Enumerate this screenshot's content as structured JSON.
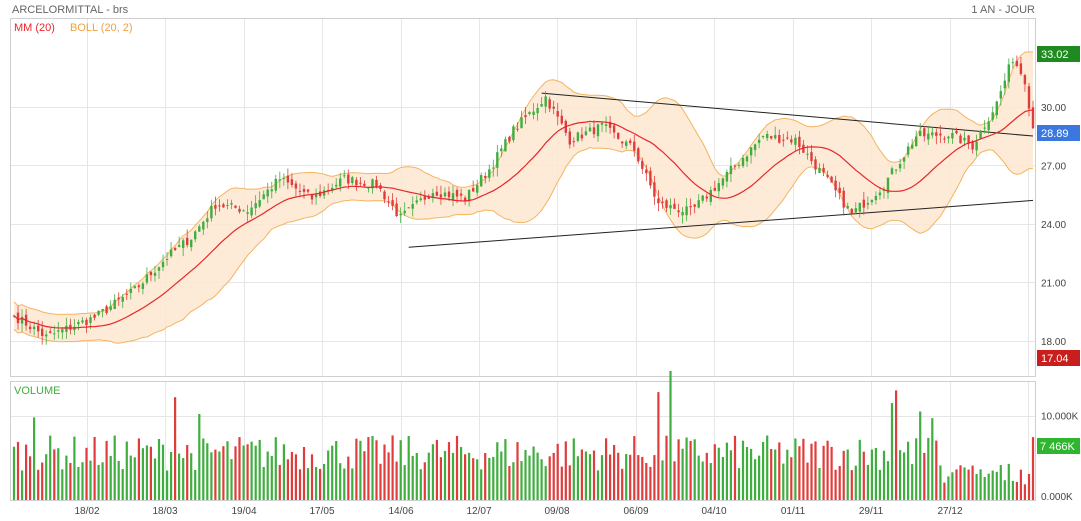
{
  "header": {
    "title": "ARCELORMITTAL - brs",
    "period": "1 AN - JOUR",
    "legend_mm": "MM (20)",
    "legend_boll": "BOLL (20, 2)",
    "volume_title": "VOLUME"
  },
  "colors": {
    "up": "#3fae3f",
    "down": "#e03c3c",
    "mm": "#e8262b",
    "boll_line": "#f5b35f",
    "boll_fill": "#fde8d1",
    "grid": "#e6e6e6",
    "badge_high": "#1f8a1f",
    "badge_last": "#3a78e0",
    "badge_low": "#c81e1e",
    "badge_vol": "#2fb52f"
  },
  "chart_data": {
    "type": "candlestick",
    "x_ticks": [
      "18/02",
      "18/03",
      "19/04",
      "17/05",
      "14/06",
      "12/07",
      "09/08",
      "06/09",
      "04/10",
      "01/11",
      "29/11",
      "27/12"
    ],
    "price_axis": {
      "ylim": [
        16.2,
        34.5
      ],
      "ticks": [
        "30.00",
        "27.00",
        "24.00",
        "21.00",
        "18.00"
      ]
    },
    "volume_axis": {
      "ylim": [
        0,
        14000
      ],
      "ticks": [
        "10.000K",
        "0.000K"
      ]
    },
    "badges": {
      "high": "33.02",
      "last": "28.89",
      "low": "17.04",
      "volume": "7 466K"
    },
    "anchors": [
      [
        0,
        19.3
      ],
      [
        8,
        18.2
      ],
      [
        20,
        19.2
      ],
      [
        30,
        20.6
      ],
      [
        38,
        22.3
      ],
      [
        44,
        23.3
      ],
      [
        50,
        25.0
      ],
      [
        58,
        24.7
      ],
      [
        66,
        26.3
      ],
      [
        74,
        25.3
      ],
      [
        82,
        26.3
      ],
      [
        90,
        26.0
      ],
      [
        96,
        24.3
      ],
      [
        104,
        25.7
      ],
      [
        112,
        25.3
      ],
      [
        118,
        26.8
      ],
      [
        124,
        28.8
      ],
      [
        132,
        30.5
      ],
      [
        138,
        28.3
      ],
      [
        146,
        29.0
      ],
      [
        154,
        27.8
      ],
      [
        160,
        25.0
      ],
      [
        168,
        24.6
      ],
      [
        176,
        26.3
      ],
      [
        186,
        28.5
      ],
      [
        194,
        28.3
      ],
      [
        202,
        26.2
      ],
      [
        208,
        24.5
      ],
      [
        216,
        26.0
      ],
      [
        224,
        28.5
      ],
      [
        232,
        28.6
      ],
      [
        238,
        28.0
      ],
      [
        244,
        30.2
      ],
      [
        248,
        32.5
      ],
      [
        251,
        31.4
      ],
      [
        253,
        28.9
      ]
    ],
    "trendlines": [
      {
        "from": [
          131,
          30.7
        ],
        "to": [
          253,
          28.5
        ]
      },
      {
        "from": [
          98,
          22.8
        ],
        "to": [
          253,
          25.2
        ]
      }
    ]
  }
}
